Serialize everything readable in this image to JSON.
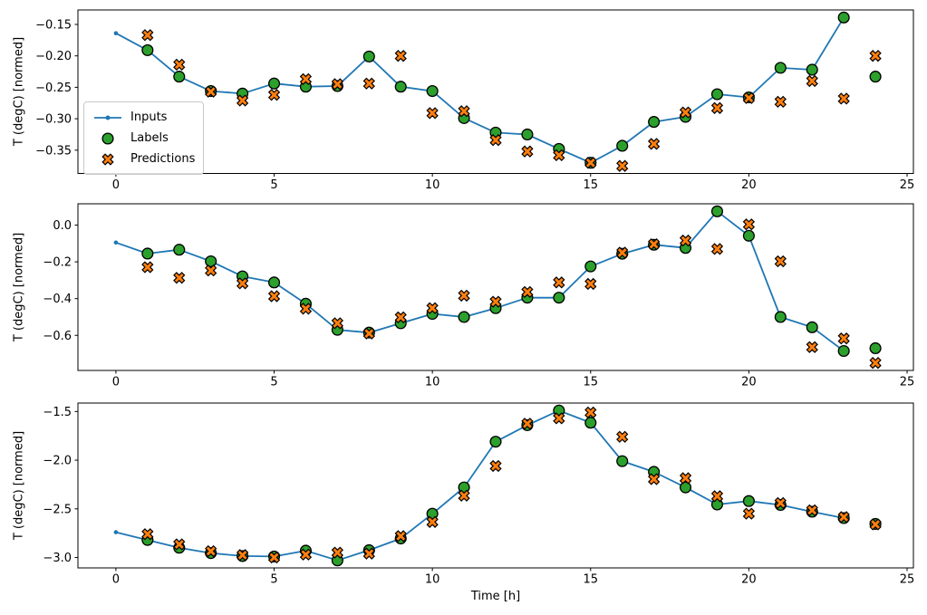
{
  "figure": {
    "xlabel": "Time [h]",
    "ylabel": "T (degC) [normed]",
    "background": "#ffffff",
    "xlim": [
      -1.2,
      25.2
    ],
    "x_ticks": {
      "values": [
        0,
        5,
        10,
        15,
        20,
        25
      ],
      "labels": [
        "0",
        "5",
        "10",
        "15",
        "20",
        "25"
      ]
    },
    "colors": {
      "inputs": "#1f77b4",
      "labels": "#2ca02c",
      "predictions": "#ff7f0e",
      "marker_edge": "#000000"
    },
    "legend": {
      "items": [
        {
          "label": "Inputs",
          "marker": "line-dot",
          "color": "#1f77b4"
        },
        {
          "label": "Labels",
          "marker": "circle",
          "color": "#2ca02c"
        },
        {
          "label": "Predictions",
          "marker": "x",
          "color": "#ff7f0e"
        }
      ]
    }
  },
  "chart_data": [
    {
      "type": "line",
      "subplot": 1,
      "ylabel": "T (degC) [normed]",
      "ylim": [
        -0.387,
        -0.127
      ],
      "y_ticks": {
        "values": [
          -0.15,
          -0.2,
          -0.25,
          -0.3,
          -0.35
        ],
        "labels": [
          "−0.15",
          "−0.20",
          "−0.25",
          "−0.30",
          "−0.35"
        ]
      },
      "series": {
        "inputs": {
          "x": [
            0,
            1,
            2,
            3,
            4,
            5,
            6,
            7,
            8,
            9,
            10,
            11,
            12,
            13,
            14,
            15,
            16,
            17,
            18,
            19,
            20,
            21,
            22,
            23
          ],
          "y": [
            -0.164,
            -0.191,
            -0.233,
            -0.256,
            -0.26,
            -0.244,
            -0.249,
            -0.248,
            -0.201,
            -0.249,
            -0.256,
            -0.299,
            -0.322,
            -0.325,
            -0.348,
            -0.37,
            -0.343,
            -0.305,
            -0.297,
            -0.261,
            -0.266,
            -0.219,
            -0.222,
            -0.139
          ]
        },
        "labels": {
          "x": [
            1,
            2,
            3,
            4,
            5,
            6,
            7,
            8,
            9,
            10,
            11,
            12,
            13,
            14,
            15,
            16,
            17,
            18,
            19,
            20,
            21,
            22,
            23,
            24
          ],
          "y": [
            -0.191,
            -0.233,
            -0.256,
            -0.26,
            -0.244,
            -0.249,
            -0.248,
            -0.201,
            -0.249,
            -0.256,
            -0.299,
            -0.322,
            -0.325,
            -0.348,
            -0.37,
            -0.343,
            -0.305,
            -0.297,
            -0.261,
            -0.266,
            -0.219,
            -0.222,
            -0.139,
            -0.233
          ]
        },
        "predictions": {
          "x": [
            1,
            2,
            3,
            4,
            5,
            6,
            7,
            8,
            9,
            10,
            11,
            12,
            13,
            14,
            15,
            16,
            17,
            18,
            19,
            20,
            21,
            22,
            23,
            24
          ],
          "y": [
            -0.167,
            -0.214,
            -0.257,
            -0.271,
            -0.262,
            -0.237,
            -0.245,
            -0.244,
            -0.2,
            -0.291,
            -0.288,
            -0.334,
            -0.352,
            -0.358,
            -0.37,
            -0.375,
            -0.34,
            -0.29,
            -0.283,
            -0.267,
            -0.273,
            -0.24,
            -0.268,
            -0.2
          ]
        }
      }
    },
    {
      "type": "line",
      "subplot": 2,
      "ylabel": "T (degC) [normed]",
      "ylim": [
        -0.791,
        0.116
      ],
      "y_ticks": {
        "values": [
          0.0,
          -0.2,
          -0.4,
          -0.6
        ],
        "labels": [
          "0.0",
          "−0.2",
          "−0.4",
          "−0.6"
        ]
      },
      "series": {
        "inputs": {
          "x": [
            0,
            1,
            2,
            3,
            4,
            5,
            6,
            7,
            8,
            9,
            10,
            11,
            12,
            13,
            14,
            15,
            16,
            17,
            18,
            19,
            20,
            21,
            22,
            23
          ],
          "y": [
            -0.095,
            -0.155,
            -0.134,
            -0.197,
            -0.279,
            -0.312,
            -0.428,
            -0.57,
            -0.585,
            -0.534,
            -0.483,
            -0.5,
            -0.452,
            -0.395,
            -0.395,
            -0.225,
            -0.156,
            -0.107,
            -0.124,
            0.075,
            -0.058,
            -0.5,
            -0.556,
            -0.685
          ]
        },
        "labels": {
          "x": [
            1,
            2,
            3,
            4,
            5,
            6,
            7,
            8,
            9,
            10,
            11,
            12,
            13,
            14,
            15,
            16,
            17,
            18,
            19,
            20,
            21,
            22,
            23,
            24
          ],
          "y": [
            -0.155,
            -0.134,
            -0.197,
            -0.279,
            -0.312,
            -0.428,
            -0.57,
            -0.585,
            -0.534,
            -0.483,
            -0.5,
            -0.452,
            -0.395,
            -0.395,
            -0.225,
            -0.156,
            -0.107,
            -0.124,
            0.075,
            -0.058,
            -0.5,
            -0.556,
            -0.685,
            -0.67
          ]
        },
        "predictions": {
          "x": [
            1,
            2,
            3,
            4,
            5,
            6,
            7,
            8,
            9,
            10,
            11,
            12,
            13,
            14,
            15,
            16,
            17,
            18,
            19,
            20,
            21,
            22,
            23,
            24
          ],
          "y": [
            -0.229,
            -0.287,
            -0.247,
            -0.317,
            -0.387,
            -0.455,
            -0.534,
            -0.59,
            -0.502,
            -0.452,
            -0.384,
            -0.417,
            -0.364,
            -0.312,
            -0.32,
            -0.15,
            -0.104,
            -0.084,
            -0.13,
            0.004,
            -0.197,
            -0.664,
            -0.617,
            -0.75
          ]
        }
      }
    },
    {
      "type": "line",
      "subplot": 3,
      "ylabel": "T (degC) [normed]",
      "ylim": [
        -3.107,
        -1.413
      ],
      "y_ticks": {
        "values": [
          -1.5,
          -2.0,
          -2.5,
          -3.0
        ],
        "labels": [
          "−1.5",
          "−2.0",
          "−2.5",
          "−3.0"
        ]
      },
      "series": {
        "inputs": {
          "x": [
            0,
            1,
            2,
            3,
            4,
            5,
            6,
            7,
            8,
            9,
            10,
            11,
            12,
            13,
            14,
            15,
            16,
            17,
            18,
            19,
            20,
            21,
            22,
            23
          ],
          "y": [
            -2.74,
            -2.82,
            -2.9,
            -2.955,
            -2.985,
            -2.99,
            -2.93,
            -3.03,
            -2.925,
            -2.805,
            -2.55,
            -2.28,
            -1.81,
            -1.64,
            -1.49,
            -1.615,
            -2.01,
            -2.12,
            -2.28,
            -2.455,
            -2.42,
            -2.46,
            -2.53,
            -2.595
          ]
        },
        "labels": {
          "x": [
            1,
            2,
            3,
            4,
            5,
            6,
            7,
            8,
            9,
            10,
            11,
            12,
            13,
            14,
            15,
            16,
            17,
            18,
            19,
            20,
            21,
            22,
            23,
            24
          ],
          "y": [
            -2.82,
            -2.9,
            -2.955,
            -2.985,
            -2.99,
            -2.93,
            -3.03,
            -2.925,
            -2.805,
            -2.55,
            -2.28,
            -1.81,
            -1.64,
            -1.49,
            -1.615,
            -2.01,
            -2.12,
            -2.28,
            -2.455,
            -2.42,
            -2.46,
            -2.53,
            -2.595,
            -2.655
          ]
        },
        "predictions": {
          "x": [
            1,
            2,
            3,
            4,
            5,
            6,
            7,
            8,
            9,
            10,
            11,
            12,
            13,
            14,
            15,
            16,
            17,
            18,
            19,
            20,
            21,
            22,
            23,
            24
          ],
          "y": [
            -2.76,
            -2.865,
            -2.935,
            -2.975,
            -3.0,
            -2.97,
            -2.95,
            -2.96,
            -2.78,
            -2.635,
            -2.365,
            -2.06,
            -1.625,
            -1.57,
            -1.51,
            -1.76,
            -2.195,
            -2.185,
            -2.37,
            -2.55,
            -2.44,
            -2.515,
            -2.585,
            -2.66
          ]
        }
      }
    }
  ]
}
